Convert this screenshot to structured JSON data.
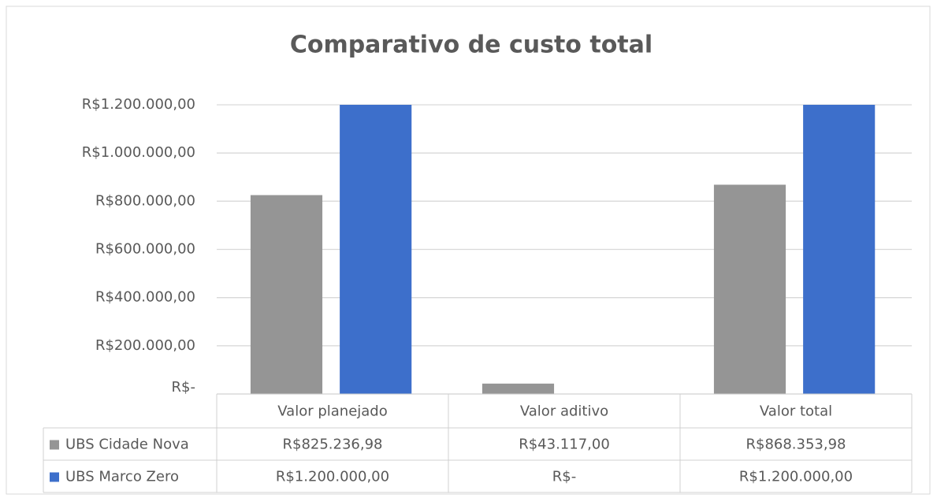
{
  "chart_data": {
    "type": "bar",
    "title": "Comparativo de custo total",
    "categories": [
      "Valor planejado",
      "Valor aditivo",
      "Valor total"
    ],
    "series": [
      {
        "name": "UBS Cidade Nova",
        "color": "#959595",
        "values": [
          825236.98,
          43117,
          868353.98
        ],
        "value_labels": [
          "R$825.236,98",
          "R$43.117,00",
          "R$868.353,98"
        ]
      },
      {
        "name": "UBS Marco Zero",
        "color": "#3d6fcb",
        "values": [
          1200000,
          0,
          1200000
        ],
        "value_labels": [
          "R$1.200.000,00",
          "R$-",
          "R$1.200.000,00"
        ]
      }
    ],
    "ylim": [
      0,
      1200000
    ],
    "yticks": [
      {
        "value": 0,
        "label": "R$-"
      },
      {
        "value": 200000,
        "label": "R$200.000,00"
      },
      {
        "value": 400000,
        "label": "R$400.000,00"
      },
      {
        "value": 600000,
        "label": "R$600.000,00"
      },
      {
        "value": 800000,
        "label": "R$800.000,00"
      },
      {
        "value": 1000000,
        "label": "R$1.000.000,00"
      },
      {
        "value": 1200000,
        "label": "R$1.200.000,00"
      }
    ],
    "grid": true,
    "data_table": true
  }
}
